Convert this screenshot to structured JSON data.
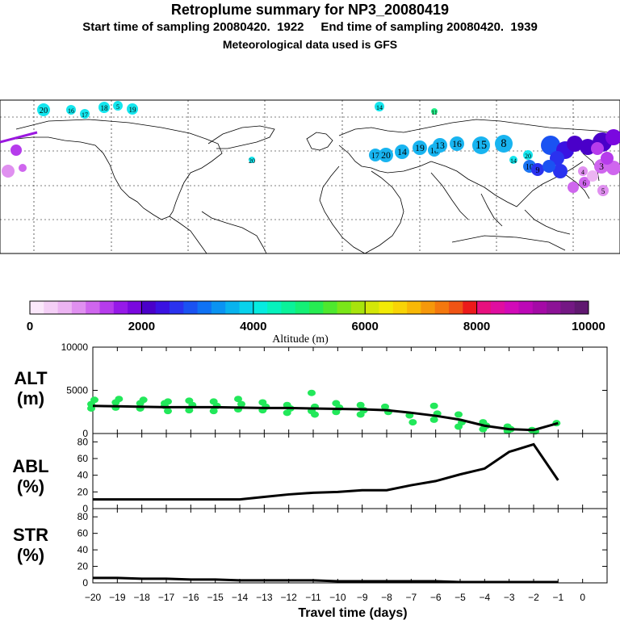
{
  "header": {
    "title": "Retroplume summary for NP3_20080419",
    "sampling": "Start time of sampling 20080420.  1922     End time of sampling 20080420.  1939",
    "met": "Meteorological data used is GFS"
  },
  "colorbar": {
    "label": "Altitude (m)",
    "ticks": [
      "0",
      "2000",
      "4000",
      "6000",
      "8000",
      "10000"
    ],
    "colors": [
      "#fbe8fb",
      "#f4cff6",
      "#ecb4f2",
      "#e090f0",
      "#cf66ee",
      "#b63cec",
      "#9619e8",
      "#7a08df",
      "#4a00c9",
      "#3a12e2",
      "#2a32ef",
      "#1a52f2",
      "#0f72f4",
      "#0a93f2",
      "#08b3ee",
      "#08d2ec",
      "#06ebe0",
      "#06f2bd",
      "#0af29a",
      "#14f076",
      "#26ec52",
      "#4ee82e",
      "#7ae618",
      "#a8e40c",
      "#d4e608",
      "#f2ea06",
      "#f8d406",
      "#f8b806",
      "#f6980a",
      "#f4780e",
      "#f05414",
      "#ec1a1a",
      "#e8107e",
      "#e00ea0",
      "#d20ab8",
      "#bc08b6",
      "#a40aa6",
      "#8c1296",
      "#741884",
      "#601870"
    ]
  },
  "map_markers": [
    {
      "label": "20",
      "color": "#14e6ee",
      "size": 8
    },
    {
      "label": "16",
      "color": "#14e6ee",
      "size": 6
    },
    {
      "label": "17",
      "color": "#14e6ee",
      "size": 6
    },
    {
      "label": "18",
      "color": "#14e6ee",
      "size": 7
    },
    {
      "label": "5",
      "color": "#14e6ee",
      "size": 6
    },
    {
      "label": "19",
      "color": "#14e6ee",
      "size": 7
    },
    {
      "label": "14",
      "color": "#14e6ee",
      "size": 6
    },
    {
      "label": "11",
      "color": "#22f08a",
      "size": 4
    },
    {
      "label": "20",
      "color": "#14e6ee",
      "size": 4
    },
    {
      "label": "17",
      "color": "#18b4f0",
      "size": 8
    },
    {
      "label": "20",
      "color": "#18b4f0",
      "size": 9
    },
    {
      "label": "14",
      "color": "#18b4f0",
      "size": 9
    },
    {
      "label": "19",
      "color": "#18b4f0",
      "size": 9
    },
    {
      "label": "18",
      "color": "#18b4f0",
      "size": 8
    },
    {
      "label": "13",
      "color": "#18b4f0",
      "size": 9
    },
    {
      "label": "16",
      "color": "#18b4f0",
      "size": 9
    },
    {
      "label": "15",
      "color": "#18b4f0",
      "size": 11
    },
    {
      "label": "8",
      "color": "#18b4f0",
      "size": 11
    },
    {
      "label": "20",
      "color": "#14e6ee",
      "size": 6
    },
    {
      "label": "14",
      "color": "#14e6ee",
      "size": 5
    },
    {
      "label": "10",
      "color": "#1b74f2",
      "size": 8
    },
    {
      "label": "9",
      "color": "#2a32ef",
      "size": 8
    },
    {
      "label": "3",
      "color": "#cf66ee",
      "size": 9
    },
    {
      "label": "6",
      "color": "#cf66ee",
      "size": 7
    },
    {
      "label": "5",
      "color": "#e090f0",
      "size": 7
    },
    {
      "label": "4",
      "color": "#e090f0",
      "size": 6
    }
  ],
  "chart_data": [
    {
      "type": "scatter+line",
      "name": "ALT",
      "ylabel": "ALT (m)",
      "ylim": [
        0,
        10000
      ],
      "yticks": [
        0,
        5000,
        10000
      ],
      "x": [
        -20,
        -19,
        -18,
        -17,
        -16,
        -15,
        -14,
        -13,
        -12,
        -11,
        -10,
        -9,
        -8,
        -7,
        -6,
        -5,
        -4,
        -3,
        -2,
        -1
      ],
      "median_line": [
        3200,
        3150,
        3100,
        3050,
        3050,
        3050,
        3000,
        2950,
        2950,
        2900,
        2850,
        2800,
        2700,
        2400,
        2050,
        1600,
        900,
        500,
        400,
        1200
      ],
      "points": [
        {
          "x": -20,
          "ys": [
            3400,
            3900,
            2900
          ]
        },
        {
          "x": -19,
          "ys": [
            3600,
            4000,
            3000
          ]
        },
        {
          "x": -18,
          "ys": [
            3500,
            3900,
            2900
          ]
        },
        {
          "x": -17,
          "ys": [
            3500,
            3700,
            3200,
            2600
          ]
        },
        {
          "x": -16,
          "ys": [
            3800,
            3300,
            2700
          ]
        },
        {
          "x": -15,
          "ys": [
            3700,
            3200,
            2600
          ]
        },
        {
          "x": -14,
          "ys": [
            4000,
            3400,
            2800
          ]
        },
        {
          "x": -13,
          "ys": [
            3600,
            3100,
            2700
          ]
        },
        {
          "x": -12,
          "ys": [
            3300,
            2900,
            2400
          ]
        },
        {
          "x": -11,
          "ys": [
            4700,
            3100,
            2600,
            2200
          ]
        },
        {
          "x": -10,
          "ys": [
            3500,
            3000,
            2500
          ]
        },
        {
          "x": -9,
          "ys": [
            3300,
            2700,
            2200
          ]
        },
        {
          "x": -8,
          "ys": [
            3100,
            2500
          ]
        },
        {
          "x": -7,
          "ys": [
            2100,
            1300
          ]
        },
        {
          "x": -6,
          "ys": [
            3200,
            2300,
            1600
          ]
        },
        {
          "x": -5,
          "ys": [
            2200,
            1300,
            800
          ]
        },
        {
          "x": -4,
          "ys": [
            1300,
            900,
            500
          ]
        },
        {
          "x": -3,
          "ys": [
            800,
            500,
            300
          ]
        },
        {
          "x": -2,
          "ys": [
            400,
            250
          ]
        },
        {
          "x": -1,
          "ys": [
            1200
          ]
        }
      ]
    },
    {
      "type": "line",
      "name": "ABL",
      "ylabel": "ABL (%)",
      "ylim": [
        0,
        90
      ],
      "yticks": [
        0,
        20,
        40,
        60,
        80
      ],
      "x": [
        -20,
        -19,
        -18,
        -17,
        -16,
        -15,
        -14,
        -13,
        -12,
        -11,
        -10,
        -9,
        -8,
        -7,
        -6,
        -5,
        -4,
        -3,
        -2,
        -1
      ],
      "values": [
        11,
        11,
        11,
        11,
        11,
        11,
        11,
        14,
        17,
        19,
        20,
        22,
        22,
        28,
        33,
        41,
        48,
        68,
        77,
        34
      ]
    },
    {
      "type": "line",
      "name": "STR",
      "ylabel": "STR (%)",
      "ylim": [
        0,
        90
      ],
      "yticks": [
        0,
        20,
        40,
        60,
        80
      ],
      "xlabel": "Travel time (days)",
      "xticks": [
        -20,
        -19,
        -18,
        -17,
        -16,
        -15,
        -14,
        -13,
        -12,
        -11,
        -10,
        -9,
        -8,
        -7,
        -6,
        -5,
        -4,
        -3,
        -2,
        -1,
        0
      ],
      "x": [
        -20,
        -19,
        -18,
        -17,
        -16,
        -15,
        -14,
        -13,
        -12,
        -11,
        -10,
        -9,
        -8,
        -7,
        -6,
        -5,
        -4,
        -3,
        -2,
        -1
      ],
      "values": [
        6,
        6,
        5,
        5,
        4,
        4,
        3,
        3,
        3,
        3,
        2,
        2,
        2,
        2,
        2,
        1,
        1,
        1,
        1,
        1
      ]
    }
  ],
  "panel_labels": {
    "alt": [
      "ALT",
      "(m)"
    ],
    "abl": [
      "ABL",
      "(%)"
    ],
    "str": [
      "STR",
      "(%)"
    ]
  },
  "xtick_labels": [
    "−20",
    "−19",
    "−18",
    "−17",
    "−16",
    "−15",
    "−14",
    "−13",
    "−12",
    "−11",
    "−10",
    "−9",
    "−8",
    "−7",
    "−6",
    "−5",
    "−4",
    "−3",
    "−2",
    "−1",
    "0"
  ]
}
